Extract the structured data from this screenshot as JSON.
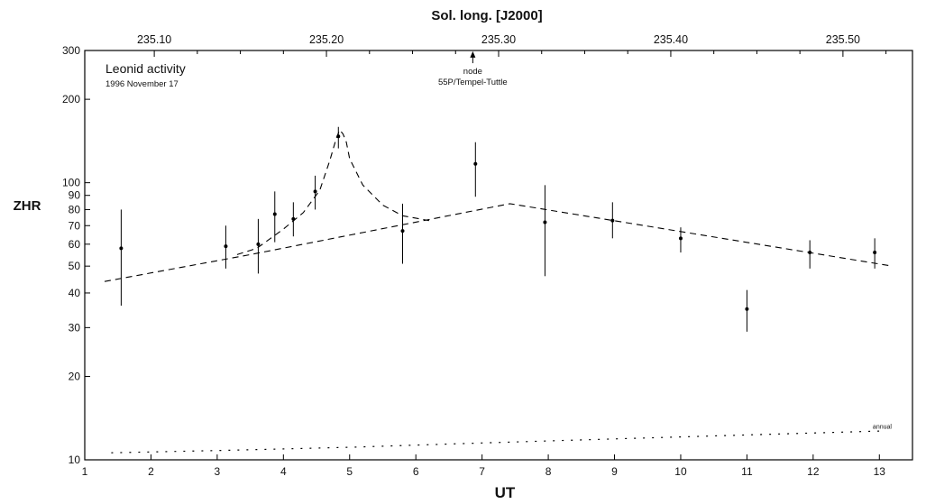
{
  "chart_data": {
    "type": "scatter",
    "title": "Leonid activity",
    "subtitle": "1996 November 17",
    "xlabel": "UT",
    "ylabel": "ZHR",
    "top_axis_label": "Sol. long.  [J2000]",
    "xlim": [
      1,
      13.5
    ],
    "ylim": [
      10,
      300
    ],
    "yscale": "log",
    "x_ticks": [
      1,
      2,
      3,
      4,
      5,
      6,
      7,
      8,
      9,
      10,
      11,
      12,
      13
    ],
    "x_tick_labels": [
      "1",
      "2",
      "3",
      "4",
      "5",
      "6",
      "7",
      "8",
      "9",
      "10",
      "11",
      "12",
      "13"
    ],
    "y_ticks": [
      10,
      20,
      30,
      40,
      50,
      60,
      70,
      80,
      90,
      100,
      200,
      300
    ],
    "y_tick_labels": [
      "10",
      "20",
      "30",
      "40",
      "50",
      "60",
      "70",
      "80",
      "90",
      "100",
      "200",
      "300"
    ],
    "top_ticks": [
      {
        "label": "235.10",
        "ut": 2.05
      },
      {
        "label": "235.20",
        "ut": 4.65
      },
      {
        "label": "235.30",
        "ut": 7.25
      },
      {
        "label": "235.40",
        "ut": 9.85
      },
      {
        "label": "235.50",
        "ut": 12.45
      }
    ],
    "top_minor_ticks_ut": [
      2.7,
      3.35,
      4.0,
      5.3,
      5.95,
      6.6,
      7.9,
      8.55,
      9.2,
      10.5,
      11.15,
      11.8,
      13.1
    ],
    "grid": false,
    "series": [
      {
        "kind": "points_with_error_bars",
        "points": [
          {
            "x": 1.55,
            "y": 58,
            "lo": 36,
            "hi": 80
          },
          {
            "x": 3.13,
            "y": 59,
            "lo": 49,
            "hi": 70
          },
          {
            "x": 3.62,
            "y": 60,
            "lo": 47,
            "hi": 74
          },
          {
            "x": 3.87,
            "y": 77,
            "lo": 61,
            "hi": 93
          },
          {
            "x": 4.15,
            "y": 74,
            "lo": 64,
            "hi": 85
          },
          {
            "x": 4.48,
            "y": 93,
            "lo": 80,
            "hi": 106
          },
          {
            "x": 4.83,
            "y": 147,
            "lo": 133,
            "hi": 159
          },
          {
            "x": 5.8,
            "y": 67,
            "lo": 51,
            "hi": 84
          },
          {
            "x": 6.9,
            "y": 117,
            "lo": 89,
            "hi": 140
          },
          {
            "x": 7.95,
            "y": 72,
            "lo": 46,
            "hi": 98
          },
          {
            "x": 8.97,
            "y": 73,
            "lo": 63,
            "hi": 85
          },
          {
            "x": 10.0,
            "y": 63,
            "lo": 56,
            "hi": 69
          },
          {
            "x": 11.0,
            "y": 35,
            "lo": 29,
            "hi": 41
          },
          {
            "x": 11.95,
            "y": 56,
            "lo": 49,
            "hi": 62
          },
          {
            "x": 12.93,
            "y": 56,
            "lo": 49,
            "hi": 63
          }
        ]
      },
      {
        "kind": "dashed_fit_background",
        "x": [
          1.3,
          3.5,
          7.42,
          13.2
        ],
        "y": [
          44,
          55,
          84,
          50
        ]
      },
      {
        "kind": "dashed_fit_peak",
        "x": [
          3.3,
          3.6,
          4.0,
          4.3,
          4.55,
          4.7,
          4.8,
          4.85,
          4.9,
          4.95,
          5.0,
          5.2,
          5.5,
          5.8,
          6.2
        ],
        "y": [
          55,
          58,
          68,
          78,
          94,
          120,
          145,
          155,
          150,
          140,
          122,
          98,
          83,
          76,
          73
        ]
      },
      {
        "name": "annual",
        "kind": "dotted_annual",
        "x": [
          1.4,
          3,
          5,
          7,
          9,
          11,
          13
        ],
        "y": [
          10.6,
          10.8,
          11.1,
          11.5,
          11.9,
          12.3,
          12.7
        ]
      }
    ],
    "annotations": [
      {
        "text_line1": "node",
        "text_line2": "55P/Tempel-Tuttle",
        "x": 6.86,
        "arrow_from_y": 270,
        "arrow_to_y": 298
      }
    ]
  }
}
